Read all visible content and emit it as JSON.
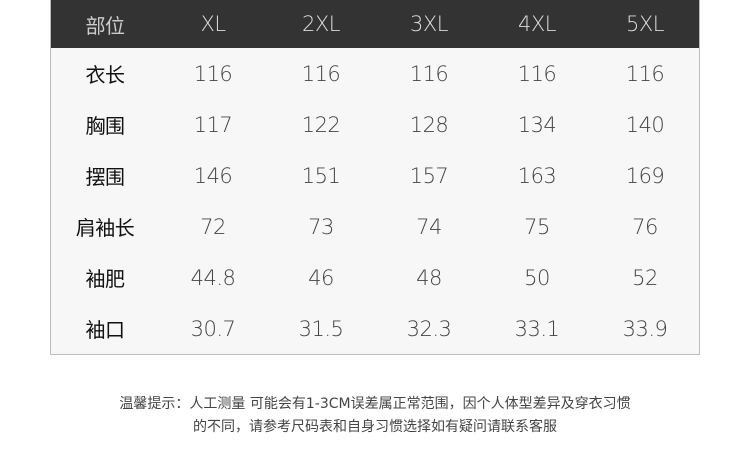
{
  "table": {
    "headers": [
      "部位",
      "XL",
      "2XL",
      "3XL",
      "4XL",
      "5XL"
    ],
    "rows": [
      {
        "label": "衣长",
        "values": [
          "116",
          "116",
          "116",
          "116",
          "116"
        ]
      },
      {
        "label": "胸围",
        "values": [
          "117",
          "122",
          "128",
          "134",
          "140"
        ]
      },
      {
        "label": "摆围",
        "values": [
          "146",
          "151",
          "157",
          "163",
          "169"
        ]
      },
      {
        "label": "肩袖长",
        "values": [
          "72",
          "73",
          "74",
          "75",
          "76"
        ]
      },
      {
        "label": "袖肥",
        "values": [
          "44.8",
          "46",
          "48",
          "50",
          "52"
        ]
      },
      {
        "label": "袖口",
        "values": [
          "30.7",
          "31.5",
          "32.3",
          "33.1",
          "33.9"
        ]
      }
    ],
    "colors": {
      "header_bg": "#333333",
      "body_bg": "#f7f7f7"
    }
  },
  "note": {
    "line1": "温馨提示：人工测量 可能会有1-3CM误差属正常范围，因个人体型差异及穿衣习惯",
    "line2": "的不同，请参考尺码表和自身习惯选择如有疑问请联系客服"
  }
}
